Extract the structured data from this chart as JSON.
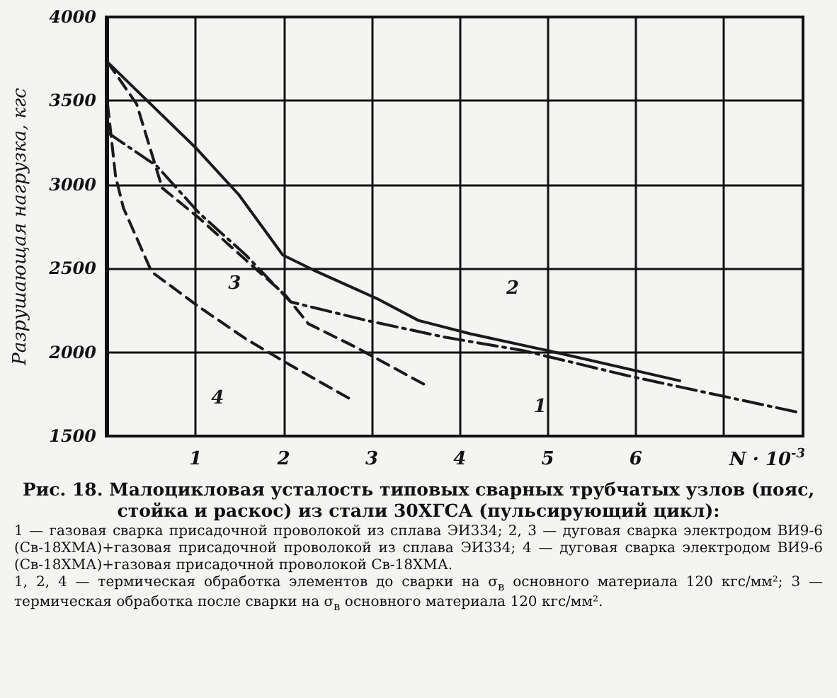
{
  "chart_data": {
    "type": "line",
    "title": "Рис. 18. Малоцикловая усталость типовых сварных трубчатых узлов (пояс, стойка и раскос) из стали 30ХГСА (пульсирующий цикл):",
    "xlabel": "N · 10$^{-3}$",
    "ylabel": "Разрушающая нагрузка, кгс",
    "xlim": [
      0,
      7.9
    ],
    "xticks": [
      1,
      2,
      3,
      4,
      5,
      6,
      {
        "value": 7,
        "label": null
      }
    ],
    "ylim": [
      1500,
      4000
    ],
    "yticks": [
      1500,
      2000,
      2500,
      3000,
      3500,
      4000
    ],
    "grid": true,
    "marker": "none",
    "series": [
      {
        "name": "1",
        "color": "#1a1a1a",
        "line_style": "dashdot",
        "x": [
          0,
          0.56,
          1.04,
          1.57,
          2.08,
          2.94,
          3.83,
          4.72,
          5.91,
          7.86
        ],
        "values": [
          3310,
          3110,
          2830,
          2580,
          2300,
          2190,
          2090,
          2010,
          1860,
          1640
        ]
      },
      {
        "name": "2",
        "color": "#1a1a1a",
        "line_style": "solid",
        "x": [
          0,
          1,
          1.49,
          1.99,
          2.34,
          3.06,
          3.53,
          4.12,
          5,
          6.5
        ],
        "values": [
          3730,
          3220,
          2940,
          2580,
          2490,
          2320,
          2190,
          2110,
          2010,
          1830
        ]
      },
      {
        "name": "3",
        "color": "#1a1a1a",
        "line_style": "dashed",
        "x": [
          0,
          0.33,
          0.62,
          1.04,
          1.57,
          2.02,
          2.28,
          2.82,
          3.59
        ],
        "values": [
          3730,
          3480,
          2980,
          2800,
          2550,
          2340,
          2170,
          2030,
          1810
        ]
      },
      {
        "name": "4",
        "color": "#1a1a1a",
        "line_style": "dashed",
        "x": [
          0,
          0.09,
          0.18,
          0.5,
          1.04,
          1.57,
          2.02,
          2.76
        ],
        "values": [
          3480,
          3050,
          2860,
          2480,
          2270,
          2080,
          1940,
          1720
        ]
      }
    ],
    "annotations": [
      "1 — газовая сварка присадочной проволокой из сплава ЭИ334; 2, 3 — дуговая сварка электродом ВИ9-6 (Св-18ХМА)+газовая присадочной проволокой из сплава ЭИ334; 4 — дуговая сварка электродом ВИ9-6 (Св-18ХМА)+газовая присадочной проволокой Св-18ХМА.",
      "1, 2, 4 — термическая обработка элементов до сварки на σ$_{в}$ основного материала 120 кгс/мм²; 3 — термическая обработка после сварки на σ$_{в}$ основного материала 120 кгс/мм²."
    ]
  }
}
